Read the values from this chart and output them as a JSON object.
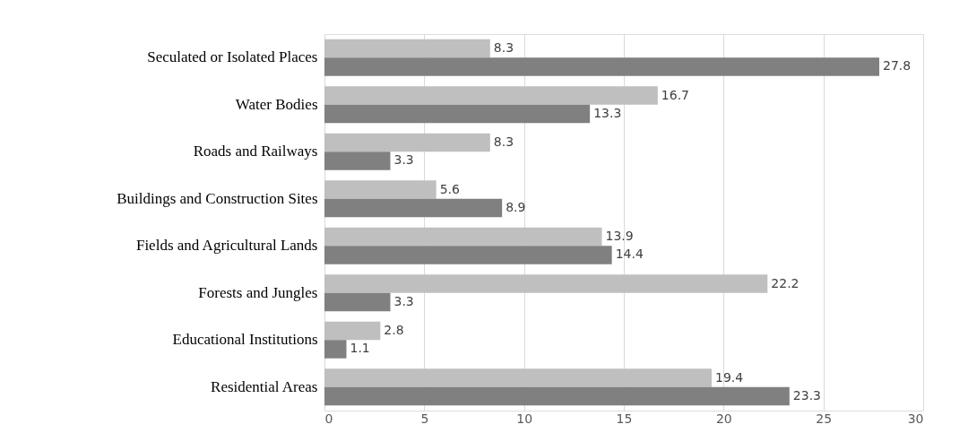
{
  "chart_data": {
    "type": "bar",
    "orientation": "horizontal",
    "categories": [
      "Seculated or Isolated Places",
      "Water Bodies",
      "Roads and Railways",
      "Buildings and Construction Sites",
      "Fields and Agricultural Lands",
      "Forests and Jungles",
      "Educational Institutions",
      "Residential Areas"
    ],
    "series": [
      {
        "color": "#bfbfbf",
        "values": [
          8.3,
          16.7,
          8.3,
          5.6,
          13.9,
          22.2,
          2.8,
          19.4
        ]
      },
      {
        "color": "#808080",
        "values": [
          27.8,
          13.3,
          3.3,
          8.9,
          14.4,
          3.3,
          1.1,
          23.3
        ]
      }
    ],
    "xlim": [
      0,
      30
    ],
    "xticks": [
      0,
      5,
      10,
      15,
      20,
      25,
      30
    ],
    "grid": "x",
    "data_labels": true
  }
}
